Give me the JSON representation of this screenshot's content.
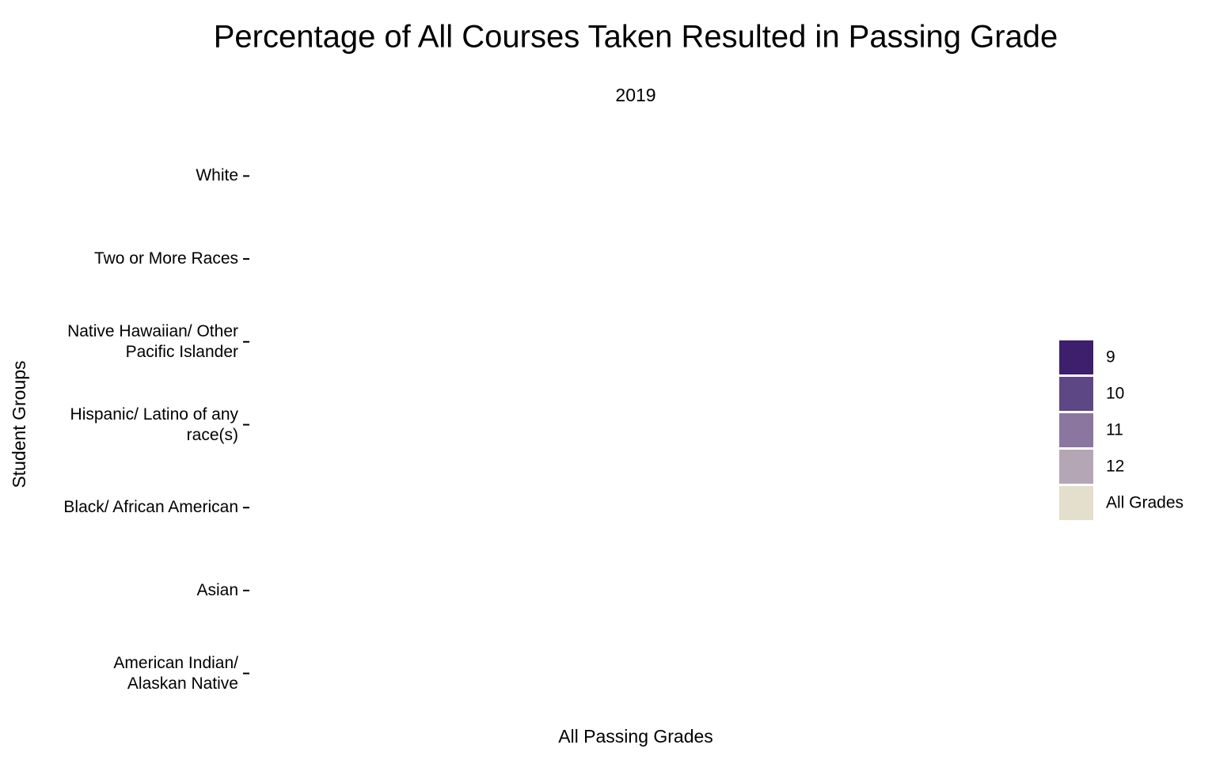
{
  "chart_data": {
    "type": "bar",
    "orientation": "horizontal",
    "title": "Percentage of All Courses Taken Resulted in Passing Grade",
    "subtitle": "2019",
    "x_label": "All Passing Grades",
    "y_label": "Student Groups",
    "categories": [
      "American Indian/\nAlaskan Native",
      "Asian",
      "Black/ African American",
      "Hispanic/ Latino of any\nrace(s)",
      "Native Hawaiian/ Other\nPacific Islander",
      "Two or More Races",
      "White"
    ],
    "series": [
      {
        "name": "9",
        "color": "#3d1f6e",
        "values": [
          null,
          null,
          null,
          null,
          null,
          null,
          null
        ]
      },
      {
        "name": "10",
        "color": "#5e4785",
        "values": [
          null,
          null,
          null,
          null,
          null,
          null,
          null
        ]
      },
      {
        "name": "11",
        "color": "#8a769e",
        "values": [
          null,
          null,
          null,
          null,
          null,
          null,
          null
        ]
      },
      {
        "name": "12",
        "color": "#b4a6b5",
        "values": [
          null,
          null,
          null,
          null,
          null,
          null,
          null
        ]
      },
      {
        "name": "All Grades",
        "color": "#e3dfcc",
        "values": [
          null,
          null,
          null,
          null,
          null,
          null,
          null
        ]
      }
    ]
  }
}
